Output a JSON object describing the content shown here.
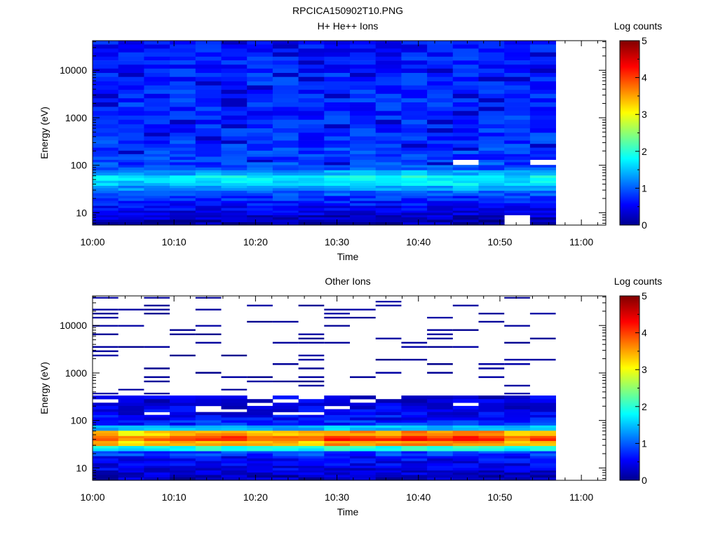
{
  "page_title": "RPCICA150902T10.PNG",
  "chart_data": [
    {
      "type": "heatmap",
      "title": "H+ He++ Ions",
      "xlabel": "Time",
      "ylabel": "Energy (eV)",
      "colorbar_label": "Log counts",
      "colorbar_ticks": [
        "0",
        "1",
        "2",
        "3",
        "4",
        "5"
      ],
      "color_range": [
        0,
        5
      ],
      "y_scale": "log",
      "y_range_ev": [
        5.5,
        42000
      ],
      "x_range": [
        "10:00",
        "11:00"
      ],
      "x_tick_labels": [
        "10:00",
        "10:10",
        "10:20",
        "10:30",
        "10:40",
        "10:50",
        "11:00"
      ],
      "y_tick_labels": [
        "10",
        "100",
        "1000",
        "10000"
      ],
      "time_columns": [
        "10:00",
        "10:03",
        "10:06",
        "10:10",
        "10:13",
        "10:16",
        "10:20",
        "10:23",
        "10:26",
        "10:30",
        "10:33",
        "10:36",
        "10:40",
        "10:43",
        "10:46",
        "10:50",
        "10:53",
        "10:56"
      ],
      "energy_channels_ev": [
        6.5,
        8.0,
        10,
        12.5,
        16,
        20,
        26,
        33,
        42,
        54,
        70,
        90,
        115,
        150,
        200,
        280,
        400,
        600,
        900,
        1400,
        2100,
        3200,
        4800,
        7200,
        11000,
        16000,
        24000,
        35000
      ],
      "band_profile_log_counts": [
        0.2,
        0.35,
        0.5,
        0.6,
        0.75,
        0.85,
        1.0,
        1.3,
        1.6,
        1.7,
        1.3,
        1.0,
        0.95,
        0.9,
        0.9,
        0.85,
        0.85,
        0.8,
        0.8,
        0.8,
        0.8,
        0.8,
        0.8,
        0.8,
        0.75,
        0.75,
        0.7,
        0.7
      ],
      "peak_log_counts_per_column": [
        1.4,
        1.3,
        1.4,
        1.5,
        1.7,
        1.7,
        1.5,
        1.4,
        1.4,
        1.7,
        1.7,
        1.6,
        2.0,
        1.8,
        2.0,
        1.7,
        1.3,
        1.8
      ],
      "missing_cells": [
        [
          16,
          0
        ],
        [
          16,
          1
        ],
        [
          14,
          12
        ],
        [
          17,
          12
        ]
      ]
    },
    {
      "type": "heatmap",
      "title": "Other Ions",
      "xlabel": "Time",
      "ylabel": "Energy (eV)",
      "colorbar_label": "Log counts",
      "colorbar_ticks": [
        "0",
        "1",
        "2",
        "3",
        "4",
        "5"
      ],
      "color_range": [
        0,
        5
      ],
      "y_scale": "log",
      "y_range_ev": [
        5.5,
        42000
      ],
      "x_range": [
        "10:00",
        "11:00"
      ],
      "x_tick_labels": [
        "10:00",
        "10:10",
        "10:20",
        "10:30",
        "10:40",
        "10:50",
        "11:00"
      ],
      "y_tick_labels": [
        "10",
        "100",
        "1000",
        "10000"
      ],
      "time_columns": [
        "10:00",
        "10:03",
        "10:06",
        "10:10",
        "10:13",
        "10:16",
        "10:20",
        "10:23",
        "10:26",
        "10:30",
        "10:33",
        "10:36",
        "10:40",
        "10:43",
        "10:46",
        "10:50",
        "10:53",
        "10:56"
      ],
      "energy_channels_ev": [
        6.5,
        8.0,
        10,
        12.5,
        16,
        20,
        26,
        33,
        42,
        54,
        70,
        90,
        115,
        150,
        200,
        280,
        400,
        600,
        900,
        1400,
        2100,
        3200,
        4800,
        7200,
        11000,
        16000,
        24000,
        35000
      ],
      "band_profile_log_counts": [
        0.3,
        0.4,
        0.5,
        0.55,
        0.6,
        0.9,
        1.8,
        3.2,
        3.6,
        3.2,
        1.4,
        0.8,
        0.65,
        0.55,
        0.5,
        0.45,
        0.3,
        0.2,
        0.1,
        0.1,
        0.1,
        0.1,
        0.1,
        0.1,
        0.1,
        0.1,
        0.1,
        0.1
      ],
      "peak_log_counts_per_column": [
        3.3,
        2.7,
        3.2,
        3.3,
        3.8,
        4.0,
        3.4,
        3.2,
        3.2,
        4.3,
        4.2,
        3.9,
        4.4,
        3.8,
        4.3,
        4.3,
        3.1,
        3.8
      ],
      "sparse_fill_fraction_high_energy": 0.25
    }
  ]
}
